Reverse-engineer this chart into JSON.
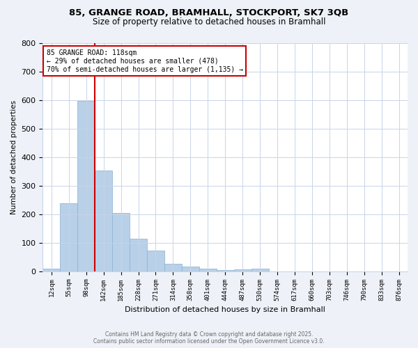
{
  "title_line1": "85, GRANGE ROAD, BRAMHALL, STOCKPORT, SK7 3QB",
  "title_line2": "Size of property relative to detached houses in Bramhall",
  "xlabel": "Distribution of detached houses by size in Bramhall",
  "ylabel": "Number of detached properties",
  "categories": [
    "12sqm",
    "55sqm",
    "98sqm",
    "142sqm",
    "185sqm",
    "228sqm",
    "271sqm",
    "314sqm",
    "358sqm",
    "401sqm",
    "444sqm",
    "487sqm",
    "530sqm",
    "574sqm",
    "617sqm",
    "660sqm",
    "703sqm",
    "746sqm",
    "790sqm",
    "833sqm",
    "876sqm"
  ],
  "values": [
    8,
    238,
    597,
    352,
    204,
    115,
    72,
    27,
    17,
    10,
    4,
    7,
    8,
    0,
    0,
    0,
    0,
    0,
    0,
    0,
    0
  ],
  "bar_color": "#b8d0e8",
  "bar_edge_color": "#8ab0d0",
  "vline_color": "#cc0000",
  "vline_index": 2.5,
  "annotation_text": "85 GRANGE ROAD: 118sqm\n← 29% of detached houses are smaller (478)\n70% of semi-detached houses are larger (1,135) →",
  "annotation_box_facecolor": "#ffffff",
  "annotation_box_edgecolor": "#cc0000",
  "ylim": [
    0,
    800
  ],
  "yticks": [
    0,
    100,
    200,
    300,
    400,
    500,
    600,
    700,
    800
  ],
  "footer_line1": "Contains HM Land Registry data © Crown copyright and database right 2025.",
  "footer_line2": "Contains public sector information licensed under the Open Government Licence v3.0.",
  "bg_color": "#eef2f8",
  "plot_bg_color": "#ffffff",
  "grid_color": "#c8d4e8"
}
